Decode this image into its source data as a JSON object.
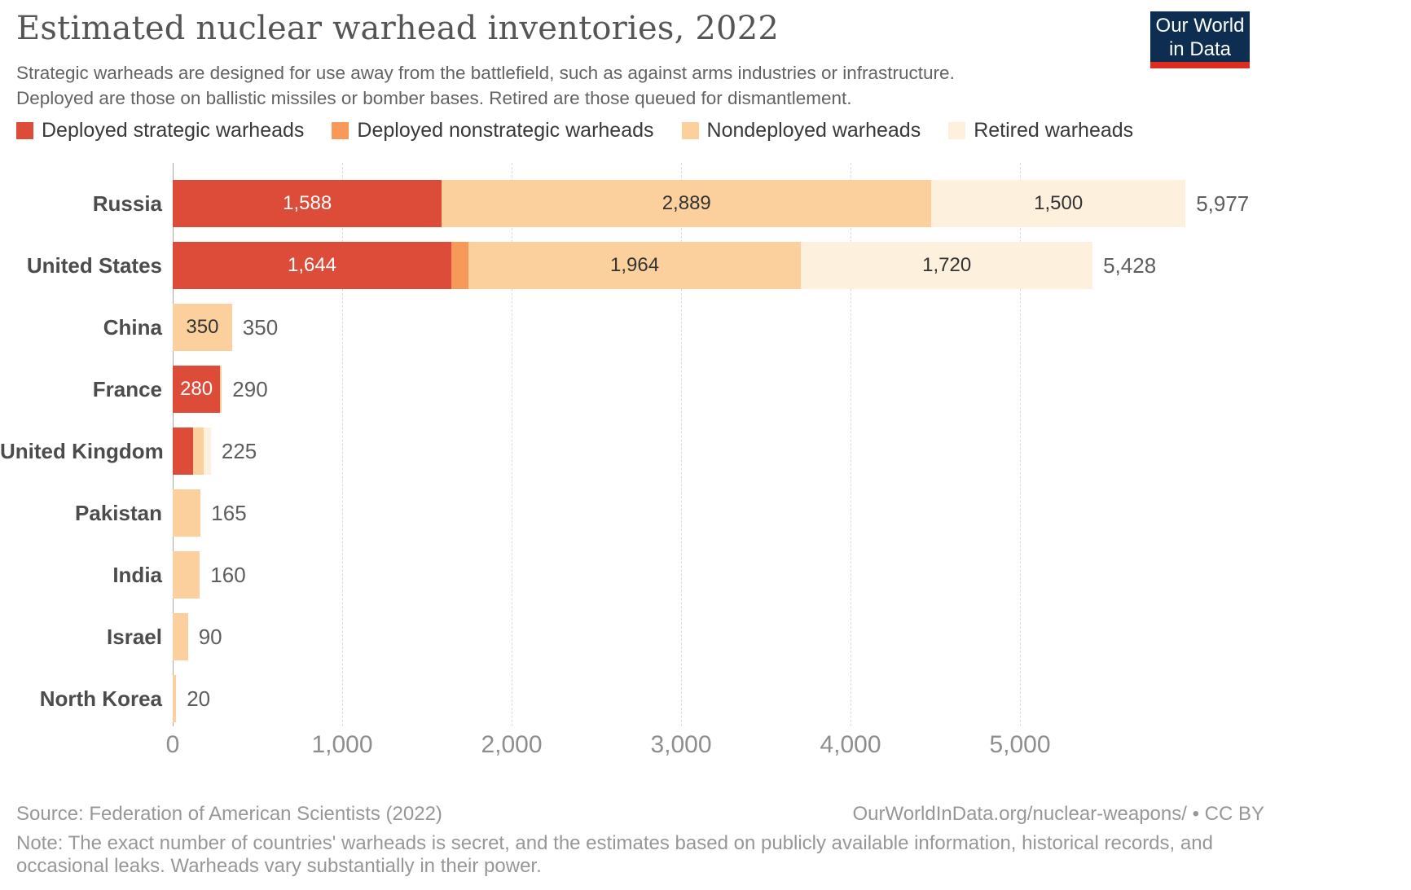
{
  "header": {
    "title": "Estimated nuclear warhead inventories, 2022",
    "subtitle_lines": [
      "Strategic warheads are designed for use away from the battlefield, such as against arms industries or infrastructure.",
      "Deployed are those on ballistic missiles or bomber bases. Retired are those queued for dismantlement."
    ],
    "logo": {
      "line1": "Our World",
      "line2": "in Data",
      "bg_color": "#0d2d51",
      "accent_color": "#dd2c20"
    }
  },
  "chart_data": {
    "type": "bar",
    "orientation": "horizontal",
    "stacked": true,
    "title": "Estimated nuclear warhead inventories, 2022",
    "categories": [
      "Russia",
      "United States",
      "China",
      "France",
      "United Kingdom",
      "Pakistan",
      "India",
      "Israel",
      "North Korea"
    ],
    "series": [
      {
        "name": "Deployed strategic warheads",
        "color": "#dd4b39",
        "label_color": "#ffffff",
        "values": [
          1588,
          1644,
          0,
          280,
          120,
          0,
          0,
          0,
          0
        ],
        "labels": [
          "1,588",
          "1,644",
          null,
          "280",
          null,
          null,
          null,
          null,
          null
        ]
      },
      {
        "name": "Deployed nonstrategic warheads",
        "color": "#f89859",
        "label_color": "#333333",
        "values": [
          0,
          100,
          0,
          0,
          0,
          0,
          0,
          0,
          0
        ],
        "labels": [
          null,
          null,
          null,
          null,
          null,
          null,
          null,
          null,
          null
        ]
      },
      {
        "name": "Nondeployed warheads",
        "color": "#fbd09c",
        "label_color": "#333333",
        "values": [
          2889,
          1964,
          350,
          10,
          60,
          165,
          160,
          90,
          20
        ],
        "labels": [
          "2,889",
          "1,964",
          "350",
          null,
          null,
          null,
          null,
          null,
          null
        ]
      },
      {
        "name": "Retired warheads",
        "color": "#fdf0dd",
        "label_color": "#333333",
        "values": [
          1500,
          1720,
          0,
          0,
          45,
          0,
          0,
          0,
          0
        ],
        "labels": [
          "1,500",
          "1,720",
          null,
          null,
          null,
          null,
          null,
          null,
          null
        ]
      }
    ],
    "totals": [
      "5,977",
      "5,428",
      "350",
      "290",
      "225",
      "165",
      "160",
      "90",
      "20"
    ],
    "x_tick_values": [
      0,
      1000,
      2000,
      3000,
      4000,
      5000
    ],
    "x_ticks": [
      "0",
      "1,000",
      "2,000",
      "3,000",
      "4,000",
      "5,000"
    ],
    "xlim": [
      0,
      6000
    ],
    "grid": "vertical-dashed",
    "legend_position": "top"
  },
  "footer": {
    "source": "Source: Federation of American Scientists (2022)",
    "credit": "OurWorldInData.org/nuclear-weapons/ • CC BY",
    "note_lines": [
      "Note: The exact number of countries' warheads is secret, and the estimates based on publicly available information, historical records, and",
      "occasional leaks. Warheads vary substantially in their power."
    ]
  }
}
